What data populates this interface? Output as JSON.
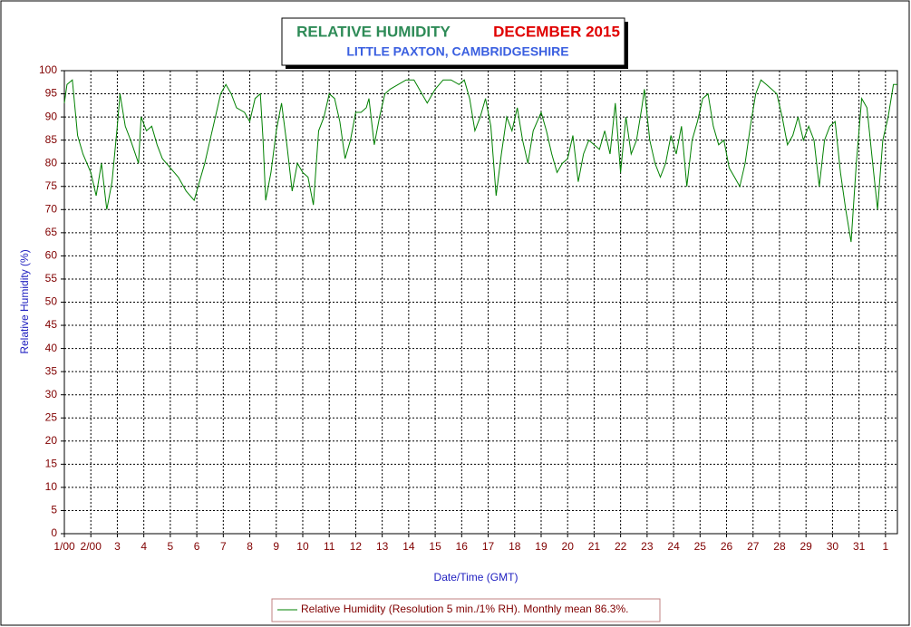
{
  "chart_data": {
    "type": "line",
    "title": "RELATIVE HUMIDITY",
    "title_month": "DECEMBER 2015",
    "subtitle": "LITTLE PAXTON, CAMBRIDGESHIRE",
    "y_label": "Relative Humidity (%)",
    "x_label": "Date/Time (GMT)",
    "xlim": [
      1,
      32.45
    ],
    "ylim": [
      0,
      100
    ],
    "xticks": [
      {
        "value": 1,
        "label": "1/00"
      },
      {
        "value": 2,
        "label": "2/00"
      },
      3,
      4,
      5,
      6,
      7,
      8,
      9,
      10,
      11,
      12,
      13,
      14,
      15,
      16,
      17,
      18,
      19,
      20,
      21,
      22,
      23,
      24,
      25,
      26,
      27,
      28,
      29,
      30,
      31,
      {
        "value": 32,
        "label": "1"
      }
    ],
    "yticks": [
      0,
      5,
      10,
      15,
      20,
      25,
      30,
      35,
      40,
      45,
      50,
      55,
      60,
      65,
      70,
      75,
      80,
      85,
      90,
      95,
      100
    ],
    "grid": true,
    "x": [
      1.0,
      1.1,
      1.3,
      1.5,
      1.7,
      2.0,
      2.2,
      2.4,
      2.6,
      2.8,
      3.0,
      3.1,
      3.3,
      3.5,
      3.8,
      3.9,
      4.1,
      4.3,
      4.5,
      4.7,
      5.0,
      5.3,
      5.6,
      5.9,
      6.1,
      6.3,
      6.5,
      6.7,
      6.9,
      7.1,
      7.3,
      7.5,
      7.8,
      8.0,
      8.2,
      8.4,
      8.5,
      8.6,
      8.8,
      9.0,
      9.2,
      9.4,
      9.6,
      9.8,
      10.0,
      10.2,
      10.4,
      10.6,
      10.8,
      11.0,
      11.2,
      11.4,
      11.6,
      11.8,
      12.0,
      12.2,
      12.4,
      12.5,
      12.7,
      12.9,
      13.1,
      13.3,
      13.6,
      13.9,
      14.2,
      14.5,
      14.7,
      15.0,
      15.3,
      15.6,
      15.9,
      16.1,
      16.3,
      16.5,
      16.7,
      16.9,
      17.1,
      17.3,
      17.5,
      17.7,
      17.9,
      18.1,
      18.3,
      18.5,
      18.7,
      19.0,
      19.2,
      19.4,
      19.6,
      19.8,
      20.0,
      20.2,
      20.4,
      20.6,
      20.8,
      21.0,
      21.2,
      21.4,
      21.6,
      21.8,
      22.0,
      22.2,
      22.4,
      22.6,
      22.8,
      22.9,
      23.1,
      23.3,
      23.5,
      23.7,
      23.9,
      24.1,
      24.3,
      24.5,
      24.7,
      24.9,
      25.1,
      25.3,
      25.5,
      25.7,
      25.9,
      26.1,
      26.3,
      26.5,
      26.7,
      26.9,
      27.1,
      27.3,
      27.5,
      27.7,
      27.9,
      28.1,
      28.3,
      28.5,
      28.7,
      28.9,
      29.1,
      29.3,
      29.5,
      29.7,
      29.9,
      30.1,
      30.3,
      30.5,
      30.7,
      30.9,
      31.1,
      31.3,
      31.5,
      31.7,
      31.9,
      32.1,
      32.3,
      32.45
    ],
    "series": [
      {
        "name": "Relative Humidity (Resolution 5 min./1% RH). Monthly mean 86.3%.",
        "color": "#008000",
        "values": [
          93,
          97,
          98,
          86,
          82,
          78,
          73,
          80,
          70,
          76,
          88,
          95,
          88,
          85,
          80,
          90,
          87,
          88,
          84,
          81,
          79,
          77,
          74,
          72,
          76,
          80,
          85,
          90,
          95,
          97,
          95,
          92,
          91,
          89,
          94,
          95,
          85,
          72,
          78,
          87,
          93,
          84,
          74,
          80,
          78,
          77,
          71,
          87,
          90,
          95,
          94,
          89,
          81,
          85,
          91,
          91,
          92,
          94,
          84,
          90,
          95,
          96,
          97,
          98,
          98,
          95,
          93,
          96,
          98,
          98,
          97,
          98,
          94,
          87,
          90,
          94,
          88,
          73,
          82,
          90,
          87,
          92,
          85,
          80,
          87,
          91,
          87,
          82,
          78,
          80,
          81,
          86,
          76,
          82,
          85,
          84,
          83,
          87,
          82,
          93,
          78,
          90,
          82,
          85,
          92,
          96,
          85,
          80,
          77,
          80,
          86,
          82,
          88,
          75,
          85,
          89,
          94,
          95,
          88,
          84,
          85,
          79,
          77,
          75,
          80,
          88,
          95,
          98,
          97,
          96,
          95,
          90,
          84,
          86,
          90,
          85,
          88,
          85,
          75,
          85,
          88,
          89,
          78,
          70,
          63,
          80,
          94,
          92,
          81,
          70,
          85,
          90,
          97,
          97
        ]
      }
    ]
  }
}
